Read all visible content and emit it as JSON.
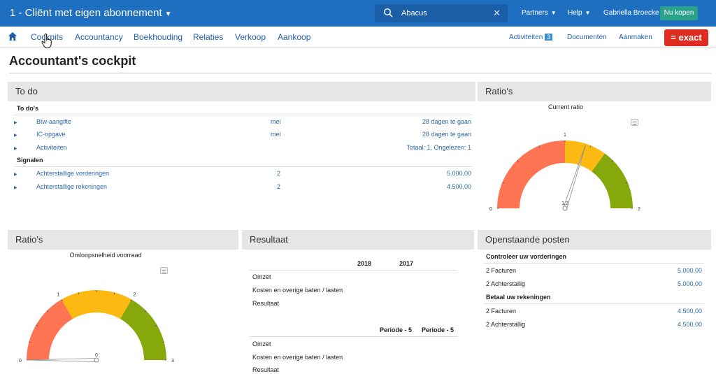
{
  "header": {
    "company": "1 - Cliënt met eigen abonnement",
    "search_value": "Abacus",
    "partners": "Partners",
    "help": "Help",
    "user": "Gabriella Broecke",
    "buy": "Nu kopen"
  },
  "menu": {
    "items": [
      "Cockpits",
      "Accountancy",
      "Boekhouding",
      "Relaties",
      "Verkoop",
      "Aankoop"
    ],
    "activities": "Activiteiten",
    "activities_count": "3",
    "documents": "Documenten",
    "create": "Aanmaken",
    "logo": "= exact"
  },
  "page": {
    "title": "Accountant's cockpit"
  },
  "todo": {
    "title": "To do",
    "section1": "To do's",
    "rows": [
      {
        "label": "Btw-aangifte",
        "mid": "mei",
        "right": "28 dagen te gaan"
      },
      {
        "label": "IC-opgave",
        "mid": "mei",
        "right": "28 dagen te gaan"
      },
      {
        "label": "Activiteiten",
        "mid": "",
        "right": "Totaal: 1, Ongelezen: 1"
      }
    ],
    "section2": "Signalen",
    "signals": [
      {
        "label": "Achterstallige vorderingen",
        "mid": "2",
        "right": "5.000,00"
      },
      {
        "label": "Achterstallige rekeningen",
        "mid": "2",
        "right": "4.500,00"
      }
    ]
  },
  "ratio1": {
    "title": "Ratio's",
    "subtitle": "Current ratio",
    "ticks": [
      "0",
      "1",
      "2"
    ],
    "needle_label": "1,2",
    "value": 1.2,
    "min": 0,
    "max": 2,
    "bands": [
      {
        "from": 0,
        "to": 1,
        "color": "#ff7453"
      },
      {
        "from": 1,
        "to": 1.4,
        "color": "#fbb911"
      },
      {
        "from": 1.4,
        "to": 2,
        "color": "#86a80b"
      }
    ]
  },
  "ratio2": {
    "title": "Ratio's",
    "subtitle": "Omloopsnelheid voorraad",
    "ticks": [
      "0",
      "1",
      "2",
      "3"
    ],
    "needle_label": "0",
    "value": 0,
    "min": 0,
    "max": 3,
    "bands": [
      {
        "from": 0,
        "to": 1,
        "color": "#ff7453"
      },
      {
        "from": 1,
        "to": 2,
        "color": "#fbb911"
      },
      {
        "from": 2,
        "to": 3,
        "color": "#86a80b"
      }
    ]
  },
  "result": {
    "title": "Resultaat",
    "block1": {
      "col1": "2018",
      "col2": "2017",
      "rows": [
        "Omzet",
        "Kosten en overige baten / lasten",
        "Resultaat"
      ]
    },
    "block2": {
      "col1": "Periode - 5",
      "col2": "Periode - 5",
      "rows": [
        "Omzet",
        "Kosten en overige baten / lasten",
        "Resultaat"
      ]
    }
  },
  "open": {
    "title": "Openstaande posten",
    "section1": "Controleer uw vorderingen",
    "rows1": [
      {
        "label": "2 Facturen",
        "value": "5.000,00"
      },
      {
        "label": "2 Achterstallig",
        "value": "5.000,00"
      }
    ],
    "section2": "Betaal uw rekeningen",
    "rows2": [
      {
        "label": "2 Facturen",
        "value": "4.500,00"
      },
      {
        "label": "2 Achterstallig",
        "value": "4.500,00"
      }
    ]
  },
  "colors": {
    "brand": "#1f6fc1",
    "link": "#2b6aa8",
    "exact_red": "#e02b20"
  }
}
